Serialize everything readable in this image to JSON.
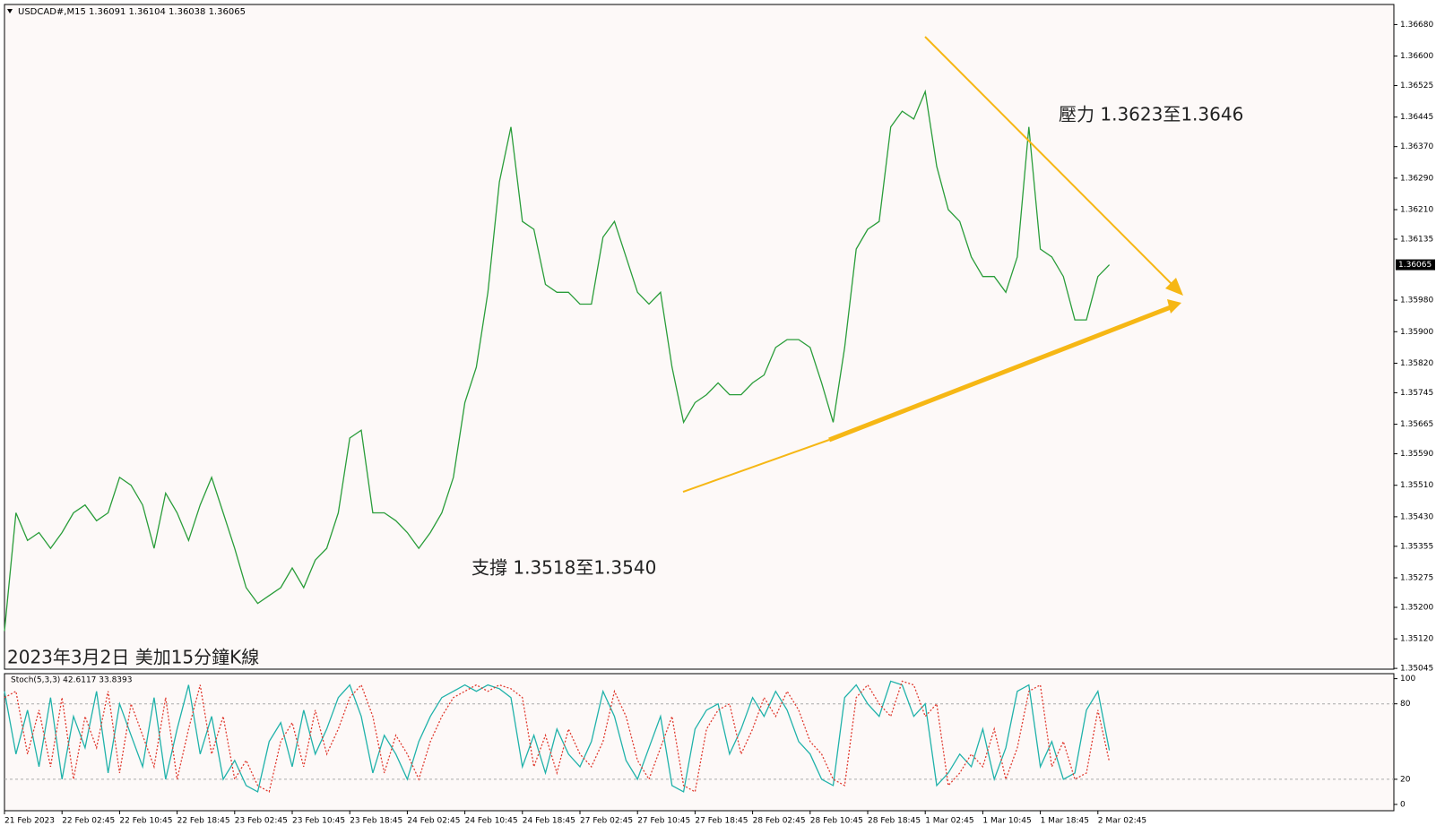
{
  "chart_data": [
    {
      "type": "line",
      "title": "USDCAD#,M15  1.36091 1.36104 1.36038 1.36065",
      "annotations": [
        "壓力 1.3623至1.3646",
        "支撐 1.3518至1.3540",
        "2023年3月2日 美加15分鐘K線"
      ],
      "last_price_label": "1.36065",
      "categories": [
        "21 Feb 2023",
        null,
        null,
        null,
        null,
        "22 Feb 02:45",
        null,
        null,
        null,
        null,
        "22 Feb 10:45",
        null,
        null,
        null,
        null,
        "22 Feb 18:45",
        null,
        null,
        null,
        null,
        "23 Feb 02:45",
        null,
        null,
        null,
        null,
        "23 Feb 10:45",
        null,
        null,
        null,
        null,
        "23 Feb 18:45",
        null,
        null,
        null,
        null,
        "24 Feb 02:45",
        null,
        null,
        null,
        null,
        "24 Feb 10:45",
        null,
        null,
        null,
        null,
        "24 Feb 18:45",
        null,
        null,
        null,
        null,
        "27 Feb 02:45",
        null,
        null,
        null,
        null,
        "27 Feb 10:45",
        null,
        null,
        null,
        null,
        "27 Feb 18:45",
        null,
        null,
        null,
        null,
        "28 Feb 02:45",
        null,
        null,
        null,
        null,
        "28 Feb 10:45",
        null,
        null,
        null,
        null,
        "28 Feb 18:45",
        null,
        null,
        null,
        null,
        "1 Mar 02:45",
        null,
        null,
        null,
        null,
        "1 Mar 10:45",
        null,
        null,
        null,
        null,
        "1 Mar 18:45",
        null,
        null,
        null,
        null,
        "2 Mar 02:45",
        null
      ],
      "series": [
        {
          "color": "#2a9d3a",
          "values": [
            1.3514,
            1.3544,
            1.3537,
            1.3539,
            1.3535,
            1.3539,
            1.3544,
            1.3546,
            1.3542,
            1.3544,
            1.3553,
            1.3551,
            1.3546,
            1.3535,
            1.3549,
            1.3544,
            1.3537,
            1.3546,
            1.3553,
            1.3544,
            1.3535,
            1.3525,
            1.3521,
            1.3523,
            1.3525,
            1.353,
            1.3525,
            1.3532,
            1.3535,
            1.3544,
            1.3563,
            1.3565,
            1.3544,
            1.3544,
            1.3542,
            1.3539,
            1.3535,
            1.3539,
            1.3544,
            1.3553,
            1.3572,
            1.3581,
            1.36,
            1.3628,
            1.3642,
            1.3618,
            1.3616,
            1.3602,
            1.36,
            1.36,
            1.3597,
            1.3597,
            1.3614,
            1.3618,
            1.3609,
            1.36,
            1.3597,
            1.36,
            1.3581,
            1.3567,
            1.3572,
            1.3574,
            1.3577,
            1.3574,
            1.3574,
            1.3577,
            1.3579,
            1.3586,
            1.3588,
            1.3588,
            1.3586,
            1.3577,
            1.3567,
            1.3586,
            1.3611,
            1.3616,
            1.3618,
            1.3642,
            1.3646,
            1.3644,
            1.3651,
            1.3632,
            1.3621,
            1.3618,
            1.3609,
            1.3604,
            1.3604,
            1.36,
            1.3609,
            1.3642,
            1.3611,
            1.3609,
            1.3604,
            1.3593,
            1.3593,
            1.3604,
            1.3607
          ]
        }
      ],
      "ylim": [
        1.35043,
        1.36731
      ],
      "yticks": [
        {
          "value": 1.3668,
          "label": "1.36680"
        },
        {
          "value": 1.366,
          "label": "1.36600"
        },
        1.36525,
        1.36445,
        {
          "value": 1.3637,
          "label": "1.36370"
        },
        {
          "value": 1.3629,
          "label": "1.36290"
        },
        {
          "value": 1.3621,
          "label": "1.36210"
        },
        1.36135,
        {
          "value": 1.3598,
          "label": "1.35980"
        },
        {
          "value": 1.359,
          "label": "1.35900"
        },
        {
          "value": 1.3582,
          "label": "1.35820"
        },
        1.35745,
        1.35665,
        {
          "value": 1.3559,
          "label": "1.35590"
        },
        {
          "value": 1.3551,
          "label": "1.35510"
        },
        {
          "value": 1.3543,
          "label": "1.35430"
        },
        1.35355,
        1.35275,
        {
          "value": 1.352,
          "label": "1.35200"
        },
        {
          "value": 1.3512,
          "label": "1.35120"
        },
        1.35045
      ]
    },
    {
      "type": "line",
      "title": "Stoch(5,3,3) 42.6117 33.8393",
      "series": [
        {
          "color": "#20b2aa",
          "values": [
            90,
            40,
            75,
            30,
            85,
            20,
            70,
            45,
            90,
            25,
            80,
            55,
            30,
            85,
            20,
            60,
            95,
            40,
            70,
            20,
            35,
            15,
            10,
            50,
            65,
            30,
            75,
            40,
            60,
            85,
            95,
            70,
            25,
            55,
            40,
            20,
            50,
            70,
            85,
            90,
            95,
            90,
            95,
            92,
            85,
            30,
            55,
            25,
            60,
            40,
            30,
            50,
            90,
            70,
            35,
            20,
            45,
            70,
            15,
            10,
            60,
            75,
            80,
            40,
            60,
            85,
            70,
            90,
            75,
            50,
            40,
            20,
            15,
            85,
            95,
            80,
            70,
            98,
            95,
            70,
            80,
            15,
            25,
            40,
            30,
            60,
            20,
            45,
            90,
            95,
            30,
            50,
            20,
            25,
            75,
            90,
            43
          ]
        },
        {
          "color": "#e03c31",
          "dashed": true,
          "values": [
            85,
            90,
            40,
            75,
            30,
            85,
            20,
            70,
            45,
            90,
            25,
            80,
            55,
            30,
            85,
            20,
            60,
            95,
            40,
            70,
            20,
            35,
            15,
            10,
            50,
            65,
            30,
            75,
            40,
            60,
            85,
            95,
            70,
            25,
            55,
            40,
            20,
            50,
            70,
            85,
            90,
            95,
            90,
            95,
            92,
            85,
            30,
            55,
            25,
            60,
            40,
            30,
            50,
            90,
            70,
            35,
            20,
            45,
            70,
            15,
            10,
            60,
            75,
            80,
            40,
            60,
            85,
            70,
            90,
            75,
            50,
            40,
            20,
            15,
            85,
            95,
            80,
            70,
            98,
            95,
            70,
            80,
            15,
            25,
            40,
            30,
            60,
            20,
            45,
            90,
            95,
            30,
            50,
            20,
            25,
            75,
            34
          ]
        }
      ],
      "ylim": [
        -5,
        104
      ],
      "yticks": [
        100,
        80,
        20,
        0
      ]
    }
  ]
}
